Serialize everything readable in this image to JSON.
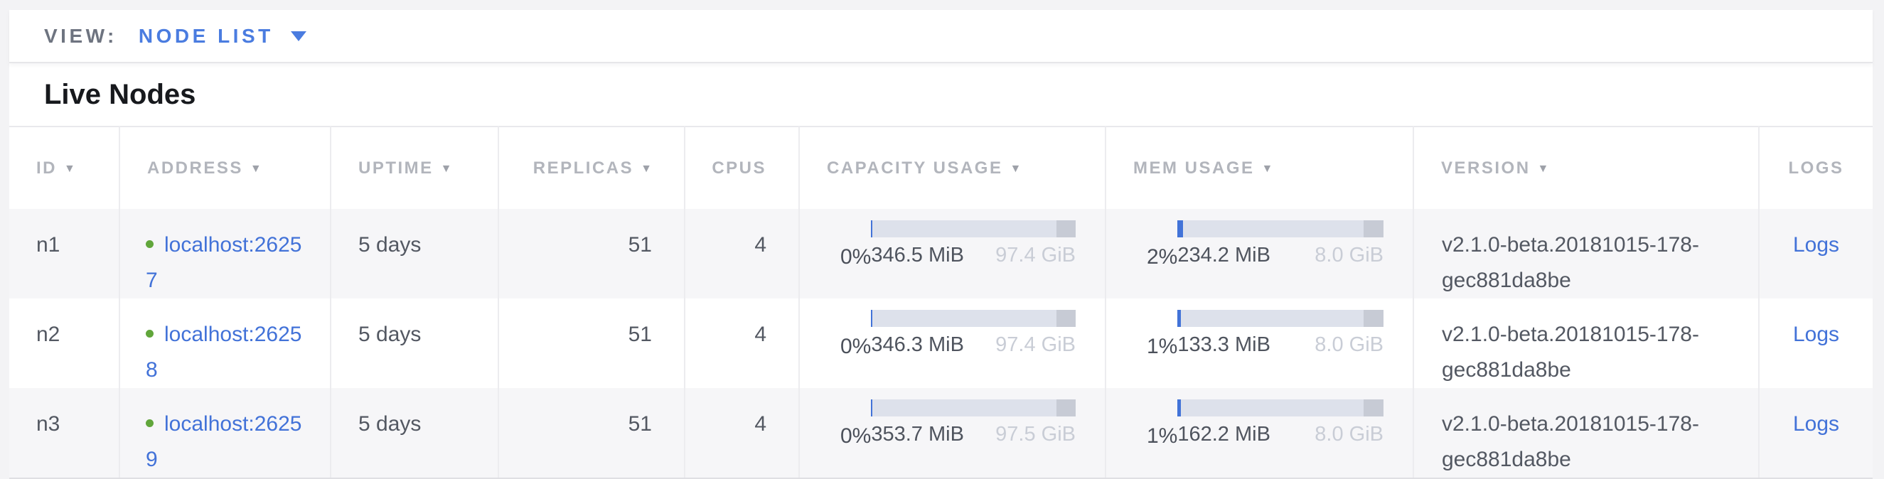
{
  "view_bar": {
    "label": "VIEW:",
    "selected": "NODE LIST"
  },
  "section": {
    "title": "Live Nodes"
  },
  "icons": {
    "sort_arrow": "▼",
    "dropdown_caret": "▼",
    "status_dot": "live-green-dot"
  },
  "colors": {
    "accent_blue": "#4a7ce0",
    "link_blue": "#4272d8",
    "status_green": "#61a63b",
    "bar_track": "#dde1eb",
    "bar_used": "#4273d8",
    "bar_reserved": "#c7cbd5",
    "row_alt_bg": "#f6f6f8",
    "header_text": "#b2b5bc"
  },
  "table": {
    "columns": [
      {
        "label": "ID",
        "sortable": true
      },
      {
        "label": "ADDRESS",
        "sortable": true
      },
      {
        "label": "UPTIME",
        "sortable": true
      },
      {
        "label": "REPLICAS",
        "sortable": true
      },
      {
        "label": "CPUS",
        "sortable": false
      },
      {
        "label": "CAPACITY USAGE",
        "sortable": true
      },
      {
        "label": "MEM USAGE",
        "sortable": true
      },
      {
        "label": "VERSION",
        "sortable": true
      },
      {
        "label": "LOGS",
        "sortable": false
      }
    ],
    "rows": [
      {
        "id": "n1",
        "address": "localhost:26257",
        "uptime": "5 days",
        "replicas": "51",
        "cpus": "4",
        "capacity": {
          "percent": "0%",
          "used": "346.5 MiB",
          "total": "97.4 GiB",
          "fill_pct": 0.7
        },
        "memory": {
          "percent": "2%",
          "used": "234.2 MiB",
          "total": "8.0 GiB",
          "fill_pct": 2.8
        },
        "version": "v2.1.0-beta.20181015-178-gec881da8be",
        "logs_label": "Logs"
      },
      {
        "id": "n2",
        "address": "localhost:26258",
        "uptime": "5 days",
        "replicas": "51",
        "cpus": "4",
        "capacity": {
          "percent": "0%",
          "used": "346.3 MiB",
          "total": "97.4 GiB",
          "fill_pct": 0.7
        },
        "memory": {
          "percent": "1%",
          "used": "133.3 MiB",
          "total": "8.0 GiB",
          "fill_pct": 1.7
        },
        "version": "v2.1.0-beta.20181015-178-gec881da8be",
        "logs_label": "Logs"
      },
      {
        "id": "n3",
        "address": "localhost:26259",
        "uptime": "5 days",
        "replicas": "51",
        "cpus": "4",
        "capacity": {
          "percent": "0%",
          "used": "353.7 MiB",
          "total": "97.5 GiB",
          "fill_pct": 0.7
        },
        "memory": {
          "percent": "1%",
          "used": "162.2 MiB",
          "total": "8.0 GiB",
          "fill_pct": 1.7
        },
        "version": "v2.1.0-beta.20181015-178-gec881da8be",
        "logs_label": "Logs"
      }
    ]
  }
}
